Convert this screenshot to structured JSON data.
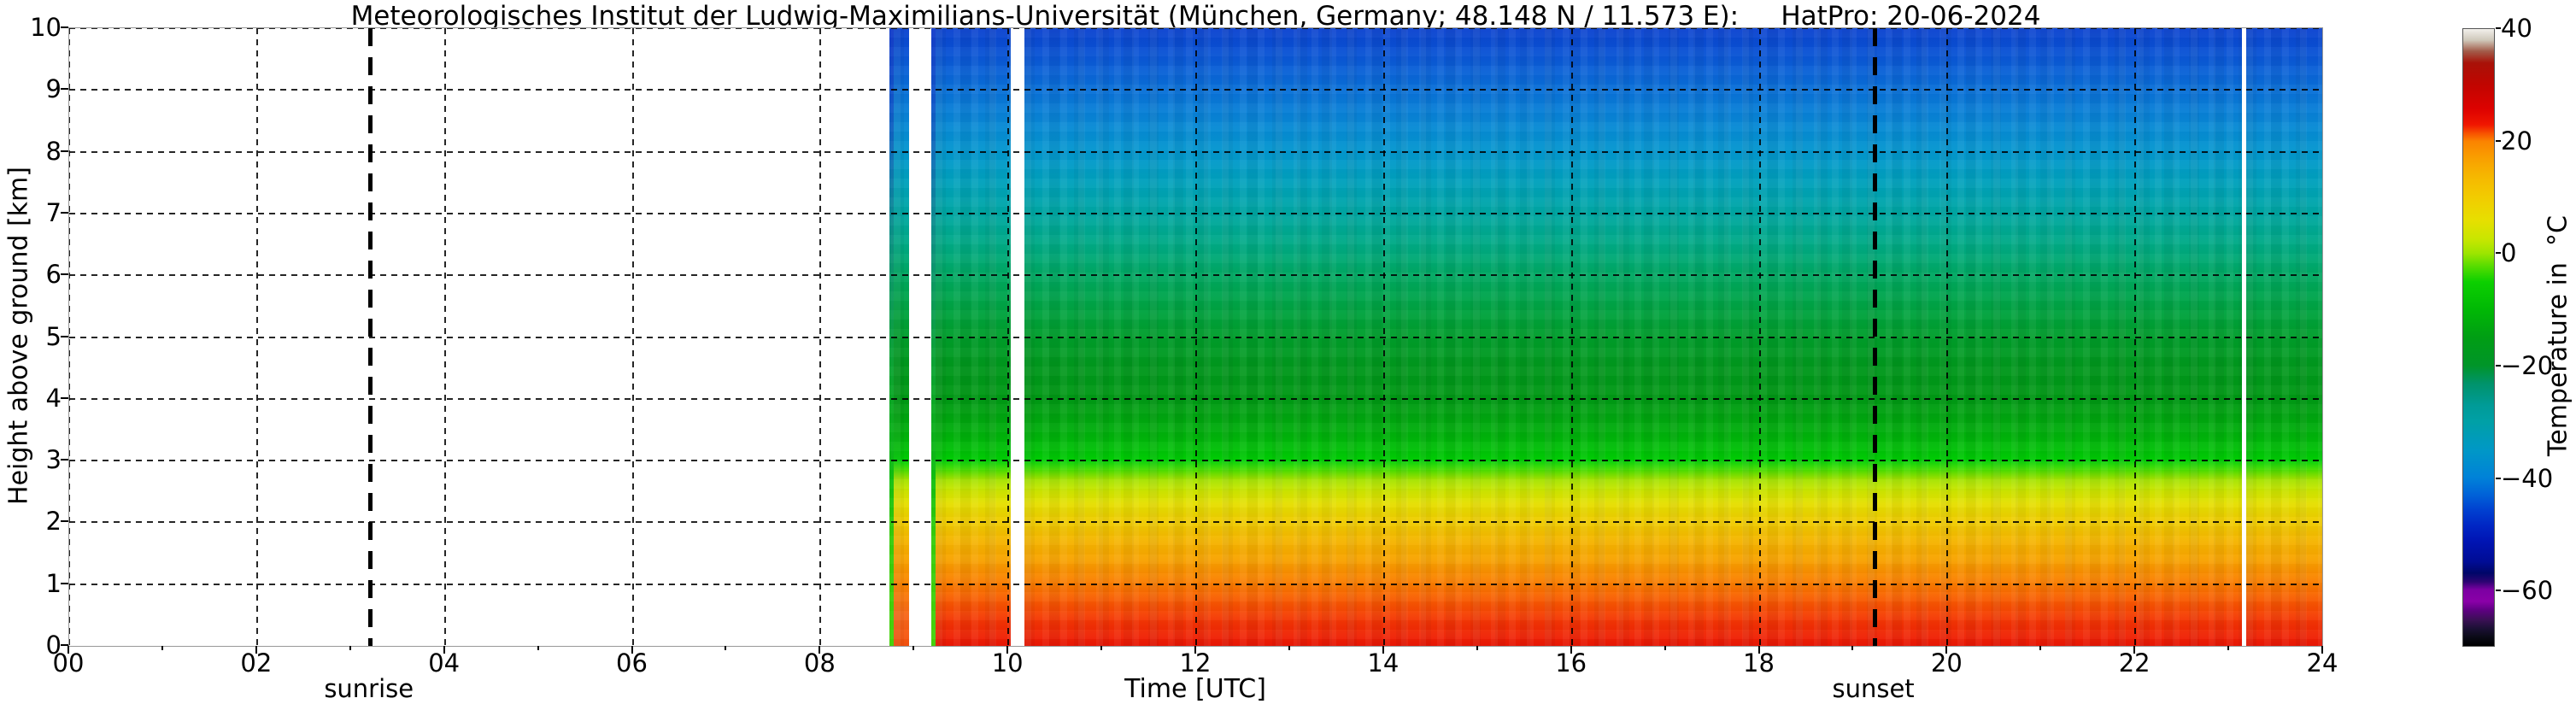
{
  "title": "Meteorologisches Institut der Ludwig-Maximilians-Universität (München, Germany; 48.148 N / 11.573 E):     HatPro: 20-06-2024",
  "axes": {
    "x": {
      "label": "Time [UTC]",
      "tick_labels": [
        "00",
        "02",
        "04",
        "06",
        "08",
        "10",
        "12",
        "14",
        "16",
        "18",
        "20",
        "22",
        "24"
      ],
      "tick_hours": [
        0,
        2,
        4,
        6,
        8,
        10,
        12,
        14,
        16,
        18,
        20,
        22,
        24
      ],
      "minor_tick_every_hours": 1,
      "range_hours": [
        0,
        24
      ]
    },
    "y": {
      "label": "Height above ground [km]",
      "tick_labels": [
        "0",
        "1",
        "2",
        "3",
        "4",
        "5",
        "6",
        "7",
        "8",
        "9",
        "10"
      ],
      "tick_km": [
        0,
        1,
        2,
        3,
        4,
        5,
        6,
        7,
        8,
        9,
        10
      ],
      "range_km": [
        0,
        10
      ]
    }
  },
  "annotations": {
    "sunrise": {
      "label": "sunrise",
      "time_utc_hours": 3.2
    },
    "sunset": {
      "label": "sunset",
      "time_utc_hours": 19.22
    }
  },
  "colorbar": {
    "label": "Temperature in  °C",
    "tick_labels": [
      "40",
      "20",
      "0",
      "−20",
      "−40",
      "−60"
    ],
    "tick_values": [
      40,
      20,
      0,
      -20,
      -40,
      -60
    ],
    "range_c": [
      40,
      -70
    ],
    "gradient_stops": [
      [
        0,
        "#f2f0ec"
      ],
      [
        1.8,
        "#cfc8ba"
      ],
      [
        3.6,
        "#a25c4a"
      ],
      [
        5.5,
        "#a81208"
      ],
      [
        9,
        "#c00500"
      ],
      [
        13,
        "#dd0200"
      ],
      [
        15.5,
        "#f01600"
      ],
      [
        16.8,
        "#f74d00"
      ],
      [
        18.2,
        "#fb8300"
      ],
      [
        21,
        "#f9a000"
      ],
      [
        24,
        "#f6b800"
      ],
      [
        27.3,
        "#f2cc00"
      ],
      [
        31,
        "#e7df00"
      ],
      [
        34,
        "#c9e600"
      ],
      [
        36.4,
        "#9ce500"
      ],
      [
        38.5,
        "#55dc00"
      ],
      [
        41,
        "#0cd000"
      ],
      [
        45.5,
        "#00b805"
      ],
      [
        50,
        "#009e14"
      ],
      [
        54.5,
        "#009528"
      ],
      [
        57.5,
        "#00936b"
      ],
      [
        61,
        "#009b97"
      ],
      [
        63.6,
        "#00a0a6"
      ],
      [
        68.2,
        "#0098c6"
      ],
      [
        72.7,
        "#0082d8"
      ],
      [
        75.5,
        "#0062d8"
      ],
      [
        78,
        "#0040d0"
      ],
      [
        80.5,
        "#0026c4"
      ],
      [
        83,
        "#0014b4"
      ],
      [
        86.4,
        "#000c94"
      ],
      [
        88.2,
        "#000668"
      ],
      [
        89.6,
        "#2c0472"
      ],
      [
        90.9,
        "#7c00a2"
      ],
      [
        92.8,
        "#8a00a8"
      ],
      [
        94.2,
        "#5e0082"
      ],
      [
        95.8,
        "#3a1054"
      ],
      [
        97.2,
        "#1b1034"
      ],
      [
        98.6,
        "#0a0a16"
      ],
      [
        100,
        "#000000"
      ]
    ]
  },
  "chart_data": {
    "type": "heatmap",
    "instrument": "HatPro",
    "date": "20-06-2024",
    "xlabel": "Time [UTC]",
    "ylabel": "Height above ground [km]",
    "value_label": "Temperature in °C",
    "x_range_hours": [
      0,
      24
    ],
    "y_range_km": [
      0,
      10
    ],
    "value_range_c": [
      -70,
      40
    ],
    "grid": {
      "x_step_hours": 2,
      "y_step_km": 1,
      "style": "dashed"
    },
    "data_segments_utc": [
      [
        8.73,
        8.94
      ],
      [
        9.18,
        10.03
      ],
      [
        10.17,
        23.14
      ],
      [
        23.18,
        24.0
      ]
    ],
    "gap_segments_utc": [
      [
        8.94,
        9.18
      ],
      [
        10.03,
        10.17
      ],
      [
        23.14,
        23.18
      ]
    ],
    "no_data_before_utc": 8.73,
    "cold_start_columns_utc": [
      8.73,
      9.18
    ],
    "mean_profile": {
      "height_km": [
        0,
        1,
        2,
        3,
        4,
        5,
        6,
        7,
        8,
        9,
        10
      ],
      "temperature_c": [
        27,
        21,
        13,
        3,
        -10,
        -15,
        -20,
        -26,
        -35,
        -43,
        -46
      ]
    },
    "render": {
      "blocks": [
        {
          "from": 8.73,
          "to": 8.775,
          "grad": "cold_edge_stops"
        },
        {
          "from": 8.775,
          "to": 8.94,
          "grad": "morning_stops"
        },
        {
          "from": 9.18,
          "to": 9.227,
          "grad": "cold_edge_stops"
        },
        {
          "from": 9.227,
          "to": 10.03,
          "grad": "main_stops"
        },
        {
          "from": 10.17,
          "to": 23.135,
          "grad": "main_stops"
        },
        {
          "from": 23.18,
          "to": 24.0,
          "grad": "main_stops"
        }
      ],
      "main_stops": [
        [
          0,
          "#0b42d0"
        ],
        [
          5,
          "#0a58d6"
        ],
        [
          10,
          "#0970d8"
        ],
        [
          15,
          "#0886d6"
        ],
        [
          20,
          "#0397cf"
        ],
        [
          25,
          "#00a1bc"
        ],
        [
          30,
          "#00a7a3"
        ],
        [
          35,
          "#00aa85"
        ],
        [
          40,
          "#00a862"
        ],
        [
          45,
          "#00a444"
        ],
        [
          50,
          "#009e2b"
        ],
        [
          55,
          "#00981c"
        ],
        [
          60,
          "#009914"
        ],
        [
          65,
          "#00ad0c"
        ],
        [
          68,
          "#00bf07"
        ],
        [
          70,
          "#00d104"
        ],
        [
          71.5,
          "#4ade00"
        ],
        [
          73,
          "#a2e300"
        ],
        [
          75,
          "#cfe700"
        ],
        [
          77,
          "#e5df00"
        ],
        [
          80,
          "#efcb00"
        ],
        [
          83,
          "#f5b500"
        ],
        [
          86,
          "#f8a300"
        ],
        [
          90,
          "#fa7b00"
        ],
        [
          93,
          "#f85602"
        ],
        [
          96,
          "#f43504"
        ],
        [
          100,
          "#ec1705"
        ]
      ],
      "morning_stops": [
        [
          0,
          "#0b42d0"
        ],
        [
          5,
          "#0a58d6"
        ],
        [
          10,
          "#0970d8"
        ],
        [
          15,
          "#0886d6"
        ],
        [
          20,
          "#0397cf"
        ],
        [
          25,
          "#00a1bc"
        ],
        [
          30,
          "#00a7a3"
        ],
        [
          35,
          "#00aa85"
        ],
        [
          40,
          "#00a862"
        ],
        [
          45,
          "#00a444"
        ],
        [
          50,
          "#009e2b"
        ],
        [
          55,
          "#00981c"
        ],
        [
          60,
          "#009914"
        ],
        [
          65,
          "#00ad0c"
        ],
        [
          68,
          "#00bf07"
        ],
        [
          70,
          "#00d104"
        ],
        [
          71.5,
          "#4ade00"
        ],
        [
          73,
          "#a2e300"
        ],
        [
          75,
          "#cfe700"
        ],
        [
          77,
          "#e5df00"
        ],
        [
          80,
          "#efcb00"
        ],
        [
          83,
          "#f5b500"
        ],
        [
          86,
          "#f8a300"
        ],
        [
          90,
          "#fa8400"
        ],
        [
          95,
          "#f8681a"
        ],
        [
          100,
          "#f6520e"
        ]
      ],
      "cold_edge_stops": [
        [
          0,
          "#0834cf"
        ],
        [
          12,
          "#0550cf"
        ],
        [
          22,
          "#0371b8"
        ],
        [
          32,
          "#008f8d"
        ],
        [
          42,
          "#009c5c"
        ],
        [
          52,
          "#00a433"
        ],
        [
          62,
          "#00ae17"
        ],
        [
          72,
          "#00c206"
        ],
        [
          82,
          "#2ed200"
        ],
        [
          100,
          "#41da00"
        ]
      ]
    }
  }
}
